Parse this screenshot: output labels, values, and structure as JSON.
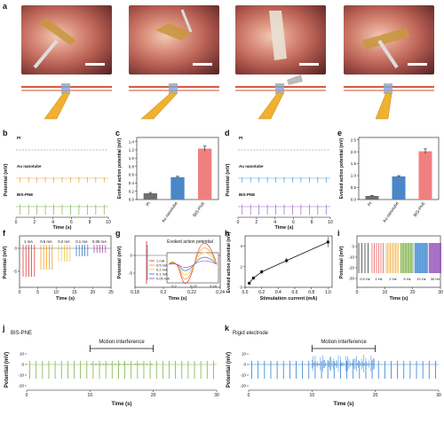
{
  "panels": {
    "a": "a",
    "b": "b",
    "c": "c",
    "d": "d",
    "e": "e",
    "f": "f",
    "g": "g",
    "h": "h",
    "i": "i",
    "j": "j",
    "k": "k"
  },
  "panel_b": {
    "ylabel": "Potential (mV)",
    "xlabel": "Time (s)",
    "xticks": [
      "0",
      "2",
      "4",
      "6",
      "8",
      "10"
    ],
    "traces": [
      {
        "name": "Pt",
        "color": "#8c8c8c"
      },
      {
        "name": "Au nanotube",
        "color": "#e8a13a"
      },
      {
        "name": "BIS-PNE",
        "color": "#7fb24a"
      }
    ]
  },
  "panel_d": {
    "ylabel": "Potential (mV)",
    "xlabel": "Time (s)",
    "xticks": [
      "0",
      "2",
      "4",
      "6",
      "8",
      "10"
    ],
    "traces": [
      {
        "name": "Pt",
        "color": "#8c8c8c"
      },
      {
        "name": "Au nanotube",
        "color": "#4a9bd6"
      },
      {
        "name": "BIS-PNE",
        "color": "#9a63c9"
      }
    ]
  },
  "panel_f": {
    "ylabel": "Potential (mV)",
    "xlabel": "Time (s)",
    "xticks": [
      "0",
      "5",
      "10",
      "15",
      "20",
      "25"
    ],
    "yticks": [
      "0",
      "-5"
    ],
    "labels": [
      "1 mA",
      "0.5 mA",
      "0.2 mA",
      "0.1 mA",
      "0.05 mA"
    ]
  },
  "panel_g": {
    "ylabel": "Potential (mV)",
    "xlabel": "Time (s)",
    "xticks": [
      "0.18",
      "0.2",
      "0.22",
      "0.24"
    ],
    "yticks": [
      "0",
      "-5"
    ],
    "annotation": "Evoked action potential",
    "legend": [
      "1 mA",
      "0.5 mA",
      "0.2 mA",
      "0.1 mA",
      "0.05 mA"
    ],
    "inset_xticks": [
      "0.2",
      "0.22",
      "0.24"
    ]
  },
  "panel_i": {
    "ylabel": "Potential (mV)",
    "xlabel": "Time (s)",
    "xticks": [
      "0",
      "10",
      "20",
      "30"
    ],
    "yticks": [
      "0",
      "-10",
      "-20",
      "-30"
    ],
    "labels": [
      "0.5 Hz",
      "1 Hz",
      "2 Hz",
      "5 Hz",
      "10 Hz",
      "30 Hz"
    ]
  },
  "panel_j": {
    "title": "BIS-PNE",
    "annotation": "Motion interference",
    "ylabel": "Potential (mV)",
    "xlabel": "Time (s)",
    "xticks": [
      "0",
      "10",
      "20",
      "30"
    ],
    "yticks": [
      "10",
      "0",
      "-10",
      "-20"
    ]
  },
  "panel_k": {
    "title": "Rigid electrode",
    "annotation": "Motion interference",
    "ylabel": "Potential (mV)",
    "xlabel": "Time (s)",
    "xticks": [
      "0",
      "10",
      "20",
      "30"
    ],
    "yticks": [
      "10",
      "0",
      "-10",
      "-20"
    ]
  },
  "chart_data": [
    {
      "type": "bar",
      "panel": "c",
      "categories": [
        "Pt",
        "Au nanotube",
        "BIS-PNE"
      ],
      "values": [
        0.15,
        0.54,
        1.23
      ],
      "errors": [
        0.02,
        0.02,
        0.06
      ],
      "colors": [
        "#6e6e6e",
        "#4a86c8",
        "#f08080"
      ],
      "ylabel": "Evoked action potential (mV)",
      "ylim": [
        0,
        1.5
      ],
      "yticks": [
        "0.0",
        "0.2",
        "0.4",
        "0.6",
        "0.8",
        "1.0",
        "1.2",
        "1.4"
      ]
    },
    {
      "type": "bar",
      "panel": "e",
      "categories": [
        "Pt",
        "Au nanotube",
        "BIS-PNE"
      ],
      "values": [
        0.15,
        0.97,
        2.02
      ],
      "errors": [
        0.02,
        0.03,
        0.1
      ],
      "colors": [
        "#6e6e6e",
        "#4a86c8",
        "#f08080"
      ],
      "ylabel": "Evoked action potential (mV)",
      "ylim": [
        0,
        2.6
      ],
      "yticks": [
        "0.0",
        "0.5",
        "1.0",
        "1.5",
        "2.0",
        "2.5"
      ]
    },
    {
      "type": "line",
      "panel": "h",
      "x": [
        0.05,
        0.1,
        0.2,
        0.5,
        1.0
      ],
      "y": [
        0.4,
        0.9,
        1.5,
        2.6,
        4.4
      ],
      "errors": [
        0.1,
        0.15,
        0.2,
        0.25,
        0.5
      ],
      "xlabel": "Stimulation current (mA)",
      "ylabel": "Evoked action potential (mV)",
      "xlim": [
        0,
        1.05
      ],
      "ylim": [
        0,
        5
      ],
      "xticks": [
        "0.0",
        "0.2",
        "0.4",
        "0.6",
        "0.8",
        "1.0"
      ],
      "yticks": [
        "0",
        "2",
        "4"
      ]
    }
  ]
}
